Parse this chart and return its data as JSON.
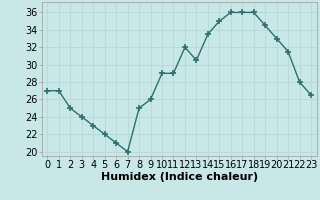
{
  "x": [
    0,
    1,
    2,
    3,
    4,
    5,
    6,
    7,
    8,
    9,
    10,
    11,
    12,
    13,
    14,
    15,
    16,
    17,
    18,
    19,
    20,
    21,
    22,
    23
  ],
  "y": [
    27,
    27,
    25,
    24,
    23,
    22,
    21,
    20,
    25,
    26,
    29,
    29,
    32,
    30.5,
    33.5,
    35,
    36,
    36,
    36,
    34.5,
    33,
    31.5,
    28,
    26.5
  ],
  "line_color": "#2e6e6e",
  "marker": "+",
  "marker_size": 5,
  "bg_color": "#c8e8e8",
  "grid_color": "#b8d8d8",
  "xlabel": "Humidex (Indice chaleur)",
  "ylabel_ticks": [
    20,
    22,
    24,
    26,
    28,
    30,
    32,
    34,
    36
  ],
  "xlim": [
    -0.5,
    23.5
  ],
  "ylim": [
    19.5,
    37.2
  ],
  "title_color": "#000000",
  "xlabel_fontsize": 8,
  "tick_fontsize": 7
}
